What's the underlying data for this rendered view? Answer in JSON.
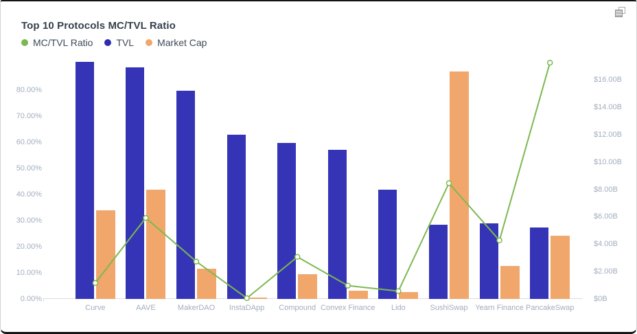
{
  "card": {
    "title": "Top 10 Protocols MC/TVL Ratio"
  },
  "icons": {
    "top_right": "copy-icon"
  },
  "colors": {
    "tvl_bar": "#3634b6",
    "market_cap_bar": "#f1a76c",
    "ratio_line": "#7cb850",
    "axis_text": "#a2adbd",
    "axis_line": "#d9dde2",
    "title_text": "#36404d",
    "legend_text": "#3d4a57"
  },
  "legend": [
    {
      "label": "MC/TVL Ratio",
      "color": "#7cb850",
      "shape": "dot"
    },
    {
      "label": "TVL",
      "color": "#2e2cb2",
      "shape": "dot"
    },
    {
      "label": "Market Cap",
      "color": "#f1a76c",
      "shape": "dot"
    }
  ],
  "chart_data": {
    "type": "bar",
    "subtype": "grouped-bars-with-line",
    "title": "Top 10 Protocols MC/TVL Ratio",
    "grid": false,
    "legend_position": "top-left",
    "categories": [
      "Curve",
      "AAVE",
      "MakerDAO",
      "InstaDApp",
      "Compound",
      "Convex Finance",
      "Lido",
      "SushiSwap",
      "Yearn Finance",
      "PancakeSwap"
    ],
    "series": [
      {
        "name": "TVL",
        "type": "bar",
        "axis": "right",
        "unit": "$B",
        "color": "#3634b6",
        "values": [
          17.3,
          16.9,
          15.2,
          12.0,
          11.4,
          10.9,
          8.0,
          5.4,
          5.5,
          5.2
        ]
      },
      {
        "name": "Market Cap",
        "type": "bar",
        "axis": "right",
        "unit": "$B",
        "color": "#f1a76c",
        "values": [
          6.5,
          8.0,
          2.2,
          0.1,
          1.8,
          0.6,
          0.5,
          16.6,
          2.4,
          4.6
        ]
      },
      {
        "name": "MC/TVL Ratio",
        "type": "line",
        "axis": "left",
        "unit": "%",
        "color": "#7cb850",
        "marker": "hollow-circle",
        "values": [
          6.1,
          31.0,
          14.3,
          0.3,
          16.1,
          5.1,
          3.0,
          44.3,
          22.4,
          90.4
        ]
      }
    ],
    "left_axis": {
      "title": "",
      "ticks": [
        "0.00%",
        "10.00%",
        "20.00%",
        "30.00%",
        "40.00%",
        "50.00%",
        "60.00%",
        "70.00%",
        "80.00%"
      ],
      "tick_values": [
        0,
        10,
        20,
        30,
        40,
        50,
        60,
        70,
        80
      ],
      "min": 0,
      "max_display": 91.5
    },
    "right_axis": {
      "title": "",
      "ticks": [
        "$0B",
        "$2.00B",
        "$4.00B",
        "$6.00B",
        "$8.00B",
        "$10.00B",
        "$12.00B",
        "$14.00B",
        "$16.00B"
      ],
      "tick_values": [
        0,
        2,
        4,
        6,
        8,
        10,
        12,
        14,
        16
      ],
      "min": 0,
      "max_display": 17.47
    },
    "xlabel": "",
    "ylabel": ""
  }
}
